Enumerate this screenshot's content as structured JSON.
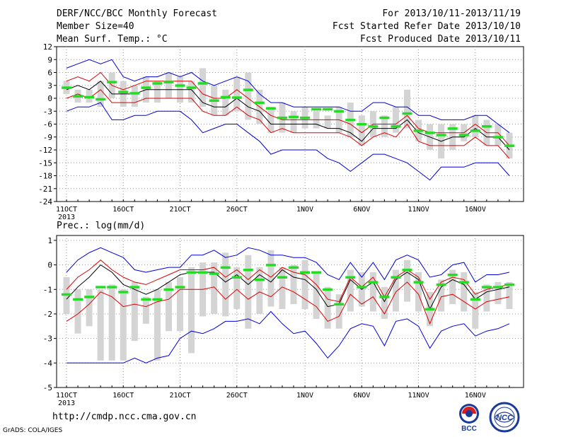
{
  "header": {
    "title": "DERF/NCC/BCC Monthly Forecast",
    "member": "Member Size=40",
    "var1": "Mean Surf. Temp.: °C",
    "range": "For 2013/10/11-2013/11/19",
    "started": "Fcst Started Refer Date 2013/10/10",
    "produced": "Fcst Produced Date 2013/10/11"
  },
  "footer": {
    "url": "http://cmdp.ncc.cma.gov.cn",
    "credit": "GrADS: COLA/IGES",
    "logo_bcc": "BCC",
    "logo_ncc": "NCC"
  },
  "colors": {
    "envelope": "#0000dd",
    "spread": "#dd0000",
    "mean": "#000000",
    "bar": "#d4d4d4",
    "marker": "#22dd22",
    "grid": "#999999"
  },
  "chart_data": [
    {
      "type": "line",
      "title": "Mean Surf. Temp.: °C",
      "x_ticks": [
        "11OCT",
        "16OCT",
        "21OCT",
        "26OCT",
        "1NOV",
        "6NOV",
        "11NOV",
        "16NOV"
      ],
      "x_tick_days": [
        0,
        5,
        10,
        15,
        21,
        26,
        31,
        36
      ],
      "x_year": "2013",
      "ylim": [
        -24,
        12
      ],
      "y_ticks": [
        12,
        9,
        6,
        3,
        0,
        -3,
        -6,
        -9,
        -12,
        -15,
        -18,
        -21,
        -24
      ],
      "grid": "dotted",
      "days": [
        0,
        1,
        2,
        3,
        4,
        5,
        6,
        7,
        8,
        9,
        10,
        11,
        12,
        13,
        14,
        15,
        16,
        17,
        18,
        19,
        20,
        21,
        22,
        23,
        24,
        25,
        26,
        27,
        28,
        29,
        30,
        31,
        32,
        33,
        34,
        35,
        36,
        37,
        38,
        39
      ],
      "series": [
        {
          "name": "max",
          "values": [
            7,
            8,
            9,
            8,
            9,
            5,
            4,
            5,
            5,
            6,
            5,
            6,
            4,
            3,
            4,
            5,
            4,
            1,
            -1,
            -1,
            -2,
            -2,
            -2,
            -2,
            -2,
            -3,
            -3,
            -1,
            -1,
            -2,
            -2,
            -4,
            -4,
            -5,
            -5,
            -5,
            -4,
            -4,
            -6,
            -8
          ]
        },
        {
          "name": "mean+sd",
          "values": [
            4,
            5,
            4,
            6,
            3,
            2,
            3,
            4,
            4,
            4,
            4,
            4,
            1,
            0,
            0,
            2,
            0,
            -2,
            -4,
            -5,
            -5,
            -5,
            -5,
            -5,
            -5,
            -6,
            -8,
            -6,
            -6,
            -6,
            -4,
            -7,
            -8,
            -8,
            -8,
            -8,
            -6,
            -8,
            -8,
            -11
          ]
        },
        {
          "name": "mean",
          "values": [
            2,
            3,
            2,
            4,
            1,
            1,
            1,
            2,
            2,
            2,
            2,
            2,
            -1,
            -2,
            -2,
            0,
            -2,
            -3,
            -6,
            -6,
            -6,
            -6,
            -6,
            -7,
            -7,
            -8,
            -10,
            -7,
            -7,
            -7,
            -5,
            -8,
            -9,
            -10,
            -9,
            -9,
            -7,
            -9,
            -9,
            -12
          ]
        },
        {
          "name": "mean-sd",
          "values": [
            0,
            1,
            0,
            2,
            -1,
            -1,
            -1,
            0,
            0,
            0,
            0,
            0,
            -3,
            -4,
            -4,
            -2,
            -4,
            -5,
            -8,
            -7,
            -8,
            -8,
            -8,
            -8,
            -8,
            -9,
            -11,
            -9,
            -8,
            -9,
            -6,
            -10,
            -11,
            -11,
            -11,
            -11,
            -9,
            -11,
            -11,
            -14
          ]
        },
        {
          "name": "min",
          "values": [
            -3,
            -2,
            -2,
            -1,
            -5,
            -5,
            -4,
            -4,
            -3,
            -3,
            -3,
            -5,
            -8,
            -7,
            -6,
            -6,
            -8,
            -10,
            -13,
            -12,
            -12,
            -12,
            -12,
            -14,
            -15,
            -17,
            -15,
            -13,
            -13,
            -14,
            -15,
            -17,
            -19,
            -16,
            -16,
            -16,
            -15,
            -15,
            -15,
            -18
          ]
        },
        {
          "name": "obs",
          "values": [
            2.5,
            0.5,
            0.3,
            -0.2,
            3.8,
            1.5,
            1.2,
            2.5,
            3.5,
            3.8,
            3,
            2.5,
            3.5,
            -0.5,
            0.3,
            0.2,
            2,
            -1,
            -2.3,
            -4.5,
            -4.3,
            -4.5,
            -2.5,
            -2.5,
            -3,
            -5,
            -6,
            -6.5,
            -4.5,
            -6.5,
            -3.5,
            -7.5,
            -8,
            -8.5,
            -7,
            -8.5,
            -7.5,
            -6.5,
            -9,
            -11
          ]
        }
      ],
      "bars": [
        [
          1,
          4
        ],
        [
          -1,
          2
        ],
        [
          -1,
          2
        ],
        [
          -2,
          4
        ],
        [
          0,
          6
        ],
        [
          -2,
          4
        ],
        [
          -2,
          3
        ],
        [
          -1,
          5
        ],
        [
          -1,
          4
        ],
        [
          0,
          6
        ],
        [
          -1,
          5
        ],
        [
          -1,
          4
        ],
        [
          -2,
          7
        ],
        [
          -4,
          3
        ],
        [
          -4,
          2
        ],
        [
          -3,
          5
        ],
        [
          -5,
          6
        ],
        [
          -6,
          2
        ],
        [
          -8,
          -2
        ],
        [
          -8,
          -1
        ],
        [
          -8,
          -3
        ],
        [
          -7,
          -2
        ],
        [
          -7,
          -3
        ],
        [
          -7,
          -4
        ],
        [
          -8,
          -2
        ],
        [
          -9,
          -1
        ],
        [
          -11,
          -4
        ],
        [
          -9,
          -3
        ],
        [
          -9,
          -4
        ],
        [
          -8,
          -2
        ],
        [
          -7,
          2
        ],
        [
          -10,
          -5
        ],
        [
          -12,
          -6
        ],
        [
          -14,
          -6
        ],
        [
          -12,
          -6
        ],
        [
          -10,
          -6
        ],
        [
          -9,
          -4
        ],
        [
          -11,
          -5
        ],
        [
          -11,
          -6
        ],
        [
          -14,
          -8
        ]
      ]
    },
    {
      "type": "line",
      "title": "Prec.: log(mm/d)",
      "x_ticks": [
        "11OCT",
        "16OCT",
        "21OCT",
        "26OCT",
        "1NOV",
        "6NOV",
        "11NOV",
        "16NOV"
      ],
      "x_tick_days": [
        0,
        5,
        10,
        15,
        21,
        26,
        31,
        36
      ],
      "x_year": "2013",
      "ylim": [
        -5,
        1.2
      ],
      "y_ticks": [
        1,
        0,
        -1,
        -2,
        -3,
        -4,
        -5
      ],
      "grid": "dotted",
      "days": [
        0,
        1,
        2,
        3,
        4,
        5,
        6,
        7,
        8,
        9,
        10,
        11,
        12,
        13,
        14,
        15,
        16,
        17,
        18,
        19,
        20,
        21,
        22,
        23,
        24,
        25,
        26,
        27,
        28,
        29,
        30,
        31,
        32,
        33,
        34,
        35,
        36,
        37,
        38,
        39
      ],
      "series": [
        {
          "name": "max",
          "values": [
            -0.3,
            0.2,
            0.5,
            0.7,
            0.5,
            0.3,
            -0.2,
            -0.3,
            -0.2,
            -0.1,
            -0.1,
            0.4,
            0.4,
            0.6,
            0.3,
            0.4,
            0.7,
            0.6,
            0.4,
            0.4,
            0.3,
            0.3,
            0.1,
            -0.4,
            -0.6,
            0.1,
            -0.5,
            0.1,
            -0.6,
            0.2,
            0.4,
            0.2,
            -0.5,
            -0.4,
            0,
            0.1,
            -0.7,
            -0.4,
            -0.4,
            -0.3
          ]
        },
        {
          "name": "mean+sd",
          "values": [
            -1,
            -0.5,
            -0.2,
            0.2,
            -0.2,
            -0.5,
            -0.7,
            -0.8,
            -0.6,
            -0.4,
            -0.2,
            -0.2,
            -0.2,
            -0.1,
            -0.5,
            -0.2,
            -0.6,
            -0.2,
            -0.5,
            -0.1,
            -0.3,
            -0.4,
            -0.8,
            -1.4,
            -1.5,
            -0.5,
            -0.9,
            -0.5,
            -1.3,
            -0.5,
            -0.2,
            -0.5,
            -1.4,
            -0.7,
            -0.5,
            -0.6,
            -1.2,
            -1,
            -0.9,
            -0.8
          ]
        },
        {
          "name": "mean",
          "values": [
            -1.4,
            -0.9,
            -0.5,
            0,
            -0.3,
            -0.8,
            -1,
            -1.2,
            -1,
            -0.7,
            -0.4,
            -0.3,
            -0.3,
            -0.3,
            -0.7,
            -0.4,
            -0.8,
            -0.4,
            -0.7,
            -0.2,
            -0.5,
            -0.6,
            -1,
            -1.7,
            -1.6,
            -0.6,
            -1,
            -0.7,
            -1.5,
            -0.6,
            -0.3,
            -0.6,
            -1.8,
            -0.9,
            -0.6,
            -0.8,
            -1.4,
            -1.1,
            -1,
            -0.9
          ]
        },
        {
          "name": "mean-sd",
          "values": [
            -2.3,
            -2,
            -1.6,
            -1.1,
            -1.3,
            -1.7,
            -1.6,
            -1.7,
            -1.5,
            -1.4,
            -1,
            -1,
            -1,
            -0.9,
            -1.4,
            -1,
            -1.4,
            -1.1,
            -1.3,
            -0.9,
            -1.1,
            -1.4,
            -1.7,
            -2.3,
            -2.1,
            -1.2,
            -1.6,
            -1.3,
            -2,
            -1.1,
            -0.7,
            -1.2,
            -2.4,
            -1.3,
            -1.2,
            -1.5,
            -1.8,
            -1.5,
            -1.4,
            -1.3
          ]
        },
        {
          "name": "min",
          "values": [
            -4,
            -4,
            -4,
            -4,
            -4,
            -4,
            -3.8,
            -4,
            -3.8,
            -3.7,
            -3,
            -2.7,
            -2.8,
            -2.6,
            -2.3,
            -2.3,
            -2.2,
            -2.4,
            -1.9,
            -2.4,
            -2.8,
            -2.7,
            -3.2,
            -3.8,
            -3.3,
            -2.6,
            -2.4,
            -2.5,
            -3.3,
            -2.3,
            -2.2,
            -2.5,
            -3.4,
            -2.7,
            -2.5,
            -2.4,
            -2.9,
            -2.7,
            -2.6,
            -2.4
          ]
        },
        {
          "name": "obs",
          "values": [
            -1.2,
            -1.4,
            -1.3,
            -0.9,
            -0.9,
            -1.1,
            -0.9,
            -1.4,
            -1.4,
            -1,
            -0.9,
            -0.3,
            -0.3,
            -0.35,
            -0.1,
            -0.5,
            -0.2,
            -0.6,
            0,
            -0.5,
            -0.1,
            -0.3,
            -0.3,
            -1,
            -1.6,
            -0.5,
            -0.9,
            -0.7,
            -1.3,
            -0.5,
            -0.2,
            -0.7,
            -1.8,
            -0.8,
            -0.4,
            -0.7,
            -1.4,
            -0.9,
            -0.9,
            -0.8
          ]
        }
      ],
      "bars": [
        [
          -2,
          -0.5
        ],
        [
          -2.8,
          -1
        ],
        [
          -2.5,
          -1
        ],
        [
          -3.9,
          -1
        ],
        [
          -3.9,
          -0.8
        ],
        [
          -3.9,
          -1
        ],
        [
          -3.1,
          -0.7
        ],
        [
          -2.4,
          -1.3
        ],
        [
          -3.9,
          -1
        ],
        [
          -2.7,
          -0.7
        ],
        [
          -2.7,
          -0.5
        ],
        [
          -3.6,
          -0.1
        ],
        [
          -2.1,
          0.1
        ],
        [
          -2,
          0.1
        ],
        [
          -2.1,
          0.5
        ],
        [
          -1.8,
          -0.1
        ],
        [
          -2.6,
          0.4
        ],
        [
          -2,
          -0.1
        ],
        [
          -1.7,
          0.6
        ],
        [
          -1.8,
          -0.1
        ],
        [
          -1.6,
          0
        ],
        [
          -1.8,
          0.2
        ],
        [
          -2.2,
          -0.3
        ],
        [
          -2.6,
          -0.9
        ],
        [
          -2.6,
          -1.2
        ],
        [
          -1.9,
          -0.2
        ],
        [
          -1.7,
          -0.3
        ],
        [
          -1.9,
          -0.3
        ],
        [
          -2.2,
          -0.9
        ],
        [
          -1.9,
          -0.2
        ],
        [
          -1.5,
          0.2
        ],
        [
          -1.9,
          -0.3
        ],
        [
          -2.5,
          -1.1
        ],
        [
          -1.9,
          -0.6
        ],
        [
          -1.6,
          -0.2
        ],
        [
          -1.9,
          -0.3
        ],
        [
          -2.6,
          -1.1
        ],
        [
          -1.9,
          -0.8
        ],
        [
          -1.6,
          -0.7
        ],
        [
          -1.8,
          -0.7
        ]
      ]
    }
  ]
}
